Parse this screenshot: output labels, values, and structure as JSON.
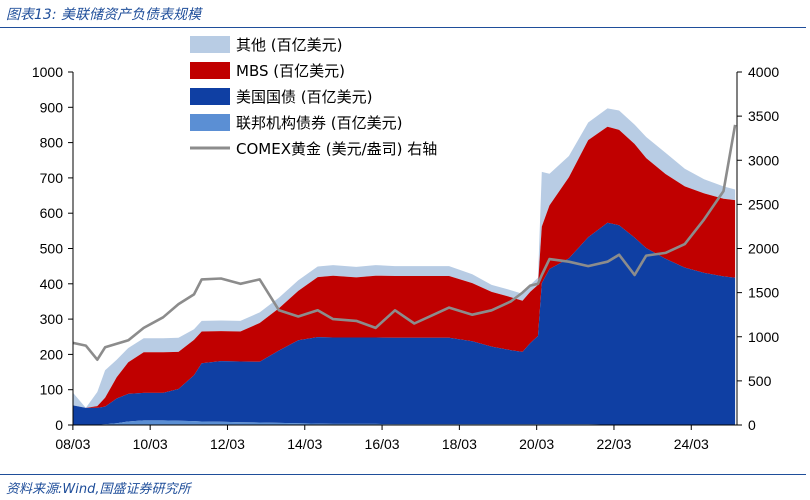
{
  "header": {
    "caption": "图表13:  美联储资产负债表规模"
  },
  "footer": {
    "source": "资料来源:Wind,国盛证券研究所"
  },
  "colors": {
    "other": "#b8cce4",
    "mbs": "#c00000",
    "treasury": "#0f3fa3",
    "agency": "#5b8fd4",
    "gold": "#8c8c8c",
    "rule": "#1f4e9a"
  },
  "chart_data": {
    "type": "area",
    "title": "",
    "xlabel": "",
    "ylabel": "",
    "x_ticks": [
      "08/03",
      "10/03",
      "12/03",
      "14/03",
      "16/03",
      "18/03",
      "20/03",
      "22/03",
      "24/03"
    ],
    "y_left": {
      "range": [
        0,
        1000
      ],
      "ticks": [
        "0",
        "100",
        "200",
        "300",
        "400",
        "500",
        "600",
        "700",
        "800",
        "900",
        "1000"
      ]
    },
    "y_right": {
      "range": [
        0,
        4000
      ],
      "ticks": [
        "0",
        "500",
        "1000",
        "1500",
        "2000",
        "2500",
        "3000",
        "3500",
        "4000"
      ]
    },
    "x": [
      2008.17,
      2008.5,
      2008.8,
      2009.0,
      2009.3,
      2009.6,
      2010.0,
      2010.5,
      2010.9,
      2011.3,
      2011.5,
      2012.0,
      2012.5,
      2013.0,
      2013.5,
      2014.0,
      2014.5,
      2014.9,
      2015.5,
      2016.0,
      2016.5,
      2017.0,
      2017.5,
      2017.9,
      2018.5,
      2019.0,
      2019.5,
      2019.8,
      2020.0,
      2020.2,
      2020.3,
      2020.5,
      2021.0,
      2021.5,
      2022.0,
      2022.3,
      2022.7,
      2023.0,
      2023.5,
      2024.0,
      2024.5,
      2025.0,
      2025.3
    ],
    "series": [
      {
        "name": "联邦机构债券 (百亿美元)",
        "area_color_key": "agency",
        "values": [
          0.5,
          0.5,
          0.5,
          2,
          5,
          10,
          13,
          13,
          12,
          11,
          10,
          9,
          8,
          7,
          6,
          5,
          4,
          3,
          3,
          3,
          2,
          2,
          2,
          2,
          2,
          2,
          2,
          2,
          2,
          2,
          2,
          2,
          2,
          2,
          1,
          1,
          1,
          1,
          1,
          1,
          1,
          1,
          1
        ]
      },
      {
        "name": "美国国债 (百亿美元)",
        "area_color_key": "treasury",
        "values": [
          55,
          48,
          48,
          50,
          70,
          78,
          78,
          78,
          90,
          130,
          165,
          172,
          172,
          172,
          205,
          235,
          245,
          245,
          245,
          245,
          245,
          245,
          245,
          245,
          235,
          220,
          210,
          205,
          230,
          250,
          400,
          440,
          470,
          530,
          572,
          565,
          530,
          500,
          470,
          445,
          430,
          420,
          416
        ]
      },
      {
        "name": "MBS (百亿美元)",
        "area_color_key": "mbs",
        "values": [
          0,
          0,
          5,
          25,
          60,
          90,
          115,
          115,
          105,
          100,
          90,
          85,
          85,
          110,
          120,
          140,
          170,
          175,
          170,
          175,
          175,
          175,
          175,
          175,
          165,
          155,
          150,
          145,
          145,
          145,
          160,
          180,
          230,
          275,
          272,
          270,
          265,
          255,
          240,
          230,
          225,
          220,
          220
        ]
      },
      {
        "name": "其他 (百亿美元)",
        "area_color_key": "other",
        "values": [
          36,
          0,
          40,
          78,
          50,
          40,
          40,
          40,
          40,
          30,
          30,
          30,
          30,
          30,
          30,
          30,
          30,
          30,
          30,
          30,
          28,
          28,
          28,
          28,
          25,
          20,
          20,
          20,
          20,
          20,
          155,
          90,
          60,
          50,
          52,
          55,
          55,
          60,
          60,
          50,
          40,
          35,
          30
        ]
      },
      {
        "name": "COMEX黄金 (美元/盎司) 右轴",
        "axis": "right",
        "type": "line",
        "color_key": "gold",
        "values": [
          930,
          900,
          740,
          880,
          920,
          960,
          1100,
          1220,
          1370,
          1480,
          1650,
          1660,
          1600,
          1650,
          1300,
          1230,
          1300,
          1200,
          1180,
          1100,
          1300,
          1150,
          1250,
          1330,
          1250,
          1300,
          1400,
          1500,
          1580,
          1600,
          1700,
          1880,
          1850,
          1800,
          1850,
          1930,
          1700,
          1920,
          1950,
          2050,
          2330,
          2650,
          3400
        ]
      }
    ],
    "legend": {
      "placement": "top-center",
      "entries": [
        "其他 (百亿美元)",
        "MBS (百亿美元)",
        "美国国债 (百亿美元)",
        "联邦机构债券 (百亿美元)",
        "COMEX黄金 (美元/盎司) 右轴"
      ]
    }
  }
}
